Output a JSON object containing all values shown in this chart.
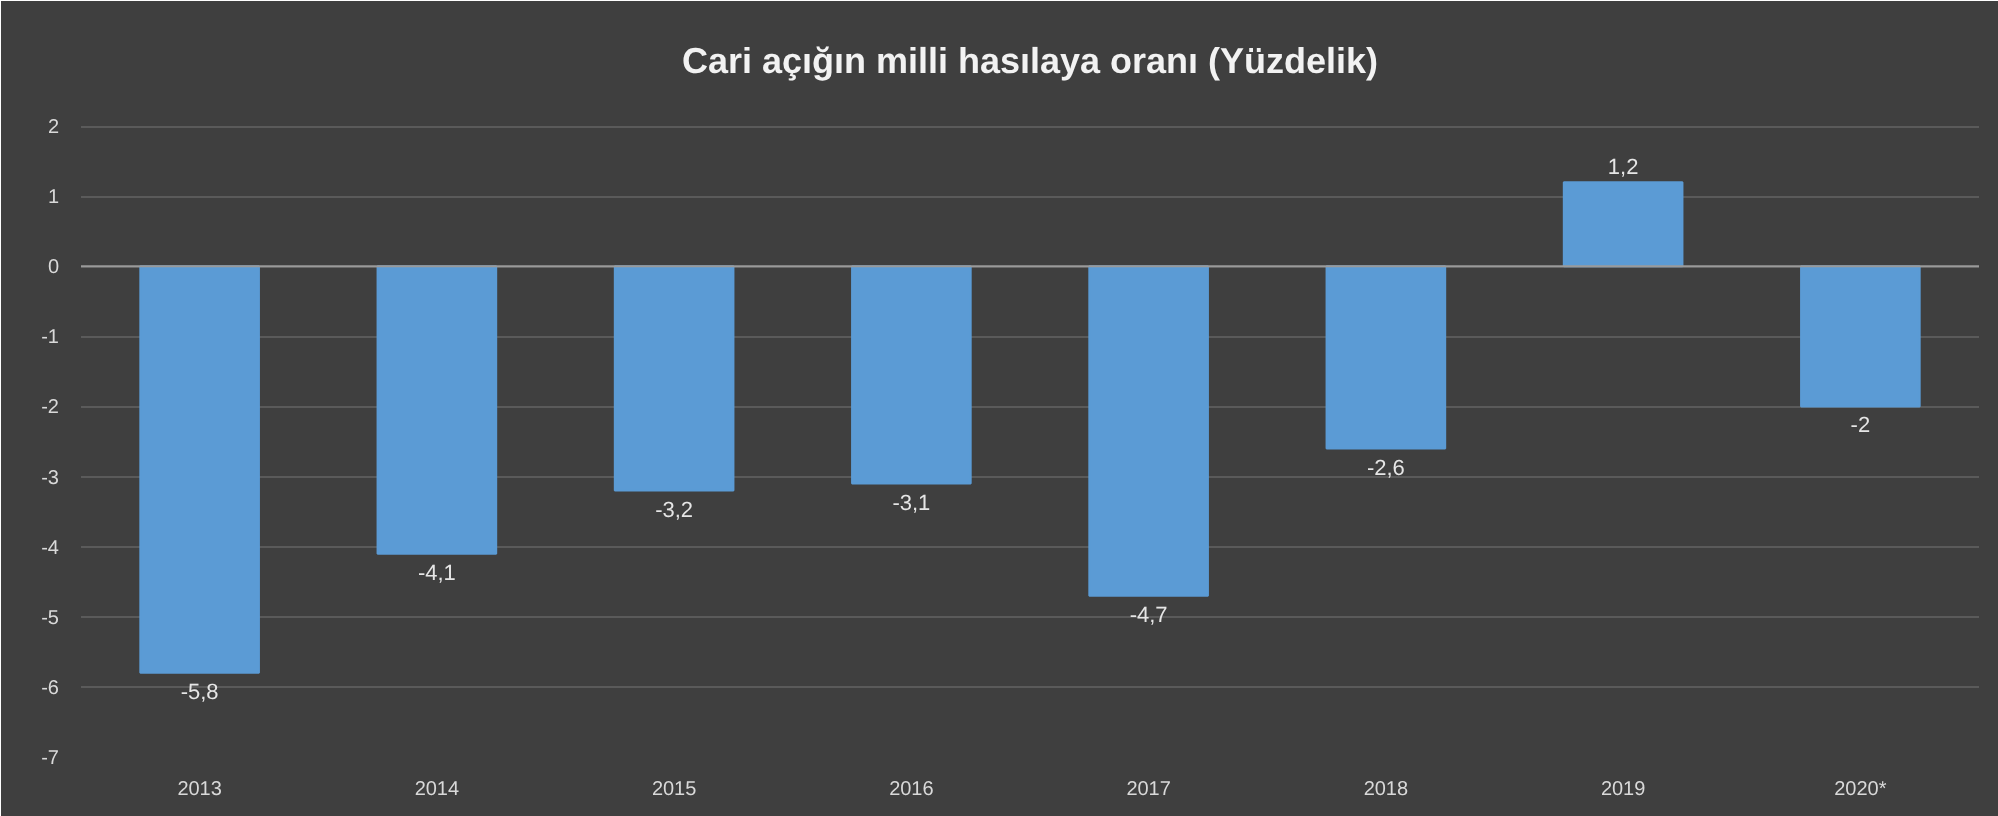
{
  "chart_data": {
    "type": "bar",
    "title": "Cari açığın milli hasılaya oranı (Yüzdelik)",
    "categories": [
      "2013",
      "2014",
      "2015",
      "2016",
      "2017",
      "2018",
      "2019",
      "2020*"
    ],
    "values": [
      -5.8,
      -4.1,
      -3.2,
      -3.1,
      -4.7,
      -2.6,
      1.2,
      -2
    ],
    "value_labels": [
      "-5,8",
      "-4,1",
      "-3,2",
      "-3,1",
      "-4,7",
      "-2,6",
      "1,2",
      "-2"
    ],
    "color": "#5b9bd5",
    "ylim": [
      -7,
      2.5
    ],
    "yticks": [
      -7,
      -6,
      -5,
      -4,
      -3,
      -2,
      -1,
      0,
      1,
      2
    ],
    "grid": "y"
  }
}
